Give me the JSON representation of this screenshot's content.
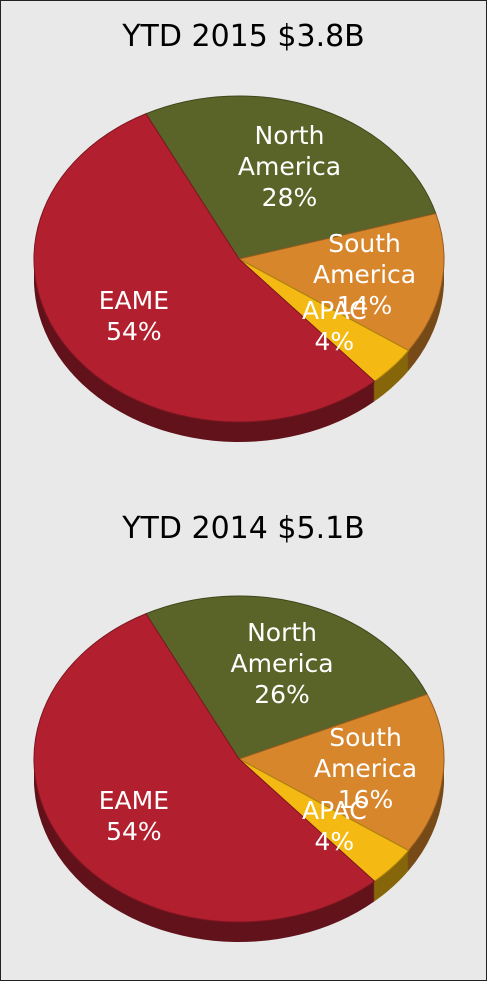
{
  "chart_data": [
    {
      "type": "pie",
      "title": "YTD 2015 $3.8B",
      "categories": [
        "North America",
        "South America",
        "APAC",
        "EAME"
      ],
      "values": [
        28,
        14,
        4,
        54
      ],
      "value_labels": [
        "28%",
        "14%",
        "4%",
        "54%"
      ],
      "colors": [
        "#5b6428",
        "#d8862c",
        "#f4b912",
        "#b2202f"
      ]
    },
    {
      "type": "pie",
      "title": "YTD 2014 $5.1B",
      "categories": [
        "North America",
        "South America",
        "APAC",
        "EAME"
      ],
      "values": [
        26,
        16,
        4,
        54
      ],
      "value_labels": [
        "26%",
        "16%",
        "4%",
        "54%"
      ],
      "colors": [
        "#5b6428",
        "#d8862c",
        "#f4b912",
        "#b2202f"
      ]
    }
  ]
}
